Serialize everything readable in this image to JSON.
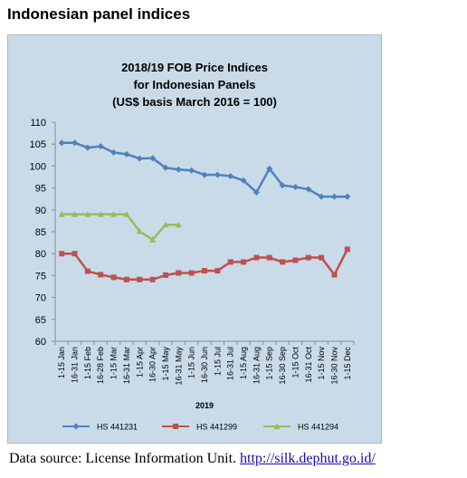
{
  "page": {
    "heading": "Indonesian panel indices",
    "source_prefix": "Data source: License Information Unit.",
    "source_link": "http://silk.dephut.go.id/"
  },
  "chart_data": {
    "type": "line",
    "title_lines": [
      "2018/19 FOB Price Indices",
      "for Indonesian Panels",
      "(US$ basis March 2016 = 100)"
    ],
    "xlabel": "2019",
    "ylabel": "",
    "ylim": [
      60,
      110
    ],
    "yticks": [
      60,
      65,
      70,
      75,
      80,
      85,
      90,
      95,
      100,
      105,
      110
    ],
    "grid": false,
    "legend_position": "bottom",
    "categories": [
      "1-15 Jan",
      "16-31 Jan",
      "1-15 Feb",
      "16-28 Feb",
      "1-15 Mar",
      "16-31 Mar",
      "1-15 Apr",
      "16-30 Apr",
      "1-15 May",
      "16-31 May",
      "1-15 Jun",
      "16-30 Jun",
      "1-15 Jul",
      "16-31 Jul",
      "1-15 Aug",
      "16-31 Aug",
      "1-15 Sep",
      "16-30 Sep",
      "1-15 Oct",
      "16-31 Oct",
      "1-15 Nov",
      "16-30 Nov",
      "1-15 Dec"
    ],
    "series": [
      {
        "name": "HS 441231",
        "color": "#4f81bd",
        "marker": "diamond",
        "values": [
          105.3,
          105.3,
          104.2,
          104.5,
          103.1,
          102.7,
          101.7,
          101.8,
          99.6,
          99.2,
          99.0,
          98.0,
          98.0,
          97.7,
          96.7,
          94.0,
          99.4,
          95.6,
          95.2,
          94.7,
          93.0,
          93.0,
          93.0
        ]
      },
      {
        "name": "HS 441299",
        "color": "#c0504d",
        "marker": "square",
        "values": [
          80.0,
          80.0,
          76.0,
          75.2,
          74.6,
          74.1,
          74.1,
          74.1,
          75.1,
          75.6,
          75.6,
          76.1,
          76.1,
          78.1,
          78.1,
          79.1,
          79.1,
          78.1,
          78.5,
          79.1,
          79.1,
          75.2,
          81.0
        ]
      },
      {
        "name": "HS 441294",
        "color": "#9bbb59",
        "marker": "triangle",
        "values": [
          89.0,
          89.0,
          89.0,
          89.0,
          89.0,
          89.0,
          85.1,
          83.2,
          86.6,
          86.6,
          null,
          null,
          null,
          null,
          null,
          null,
          null,
          null,
          null,
          null,
          null,
          null,
          null
        ]
      }
    ]
  }
}
